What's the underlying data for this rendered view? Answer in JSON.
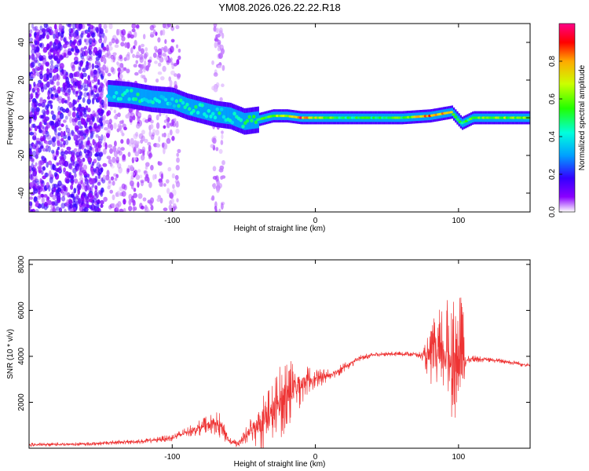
{
  "title": "YM08.2026.026.22.22.R18",
  "chart_data": [
    {
      "type": "heatmap",
      "xlabel": "Height of straight line (km)",
      "ylabel": "Frequency (Hz)",
      "xlim": [
        -200,
        150
      ],
      "ylim": [
        -50,
        50
      ],
      "xticks": [
        -100,
        0,
        100
      ],
      "yticks": [
        -40,
        -20,
        0,
        20,
        40
      ],
      "colorbar": {
        "label": "Normalized spectral amplitude",
        "range": [
          0,
          1
        ],
        "ticks": [
          "0.0",
          "0.2",
          "0.4",
          "0.6",
          "0.8"
        ]
      },
      "bands": [
        {
          "x_from": -200,
          "x_to": -148,
          "freq_spread": 50,
          "amplitude": 0.12
        },
        {
          "x_from": -148,
          "x_to": -95,
          "freq_spread": 50,
          "amplitude": 0.05
        },
        {
          "x_from": -72,
          "x_to": -64,
          "freq_spread": 50,
          "amplitude": 0.04
        }
      ],
      "ridge": [
        {
          "x": -145,
          "freq": 13,
          "amplitude": 0.35
        },
        {
          "x": -130,
          "freq": 12,
          "amplitude": 0.45
        },
        {
          "x": -115,
          "freq": 10,
          "amplitude": 0.4
        },
        {
          "x": -100,
          "freq": 9,
          "amplitude": 0.4
        },
        {
          "x": -90,
          "freq": 6,
          "amplitude": 0.45
        },
        {
          "x": -80,
          "freq": 4,
          "amplitude": 0.45
        },
        {
          "x": -70,
          "freq": 2,
          "amplitude": 0.45
        },
        {
          "x": -60,
          "freq": 1,
          "amplitude": 0.4
        },
        {
          "x": -50,
          "freq": -2,
          "amplitude": 0.45
        },
        {
          "x": -40,
          "freq": -1,
          "amplitude": 0.5
        },
        {
          "x": -30,
          "freq": 1,
          "amplitude": 0.55
        },
        {
          "x": -20,
          "freq": 1,
          "amplitude": 0.7
        },
        {
          "x": -10,
          "freq": 0,
          "amplitude": 0.85
        },
        {
          "x": 0,
          "freq": 0,
          "amplitude": 0.65
        },
        {
          "x": 20,
          "freq": 0,
          "amplitude": 0.5
        },
        {
          "x": 40,
          "freq": 0,
          "amplitude": 0.5
        },
        {
          "x": 60,
          "freq": 0,
          "amplitude": 0.55
        },
        {
          "x": 80,
          "freq": 1,
          "amplitude": 0.85
        },
        {
          "x": 95,
          "freq": 3,
          "amplitude": 0.7
        },
        {
          "x": 102,
          "freq": -3,
          "amplitude": 0.45
        },
        {
          "x": 110,
          "freq": 0,
          "amplitude": 0.55
        },
        {
          "x": 130,
          "freq": 0,
          "amplitude": 0.6
        },
        {
          "x": 150,
          "freq": 0,
          "amplitude": 0.6
        }
      ]
    },
    {
      "type": "line",
      "xlabel": "Height of straight line (km)",
      "ylabel": "SNR (10 * v/v)",
      "xlim": [
        -200,
        150
      ],
      "ylim": [
        0,
        8200
      ],
      "xticks": [
        -100,
        0,
        100
      ],
      "yticks": [
        2000,
        4000,
        6000,
        8000
      ],
      "series": [
        {
          "color": "#ee3333",
          "x": [
            -200,
            -180,
            -160,
            -140,
            -120,
            -100,
            -90,
            -80,
            -70,
            -65,
            -60,
            -55,
            -50,
            -45,
            -40,
            -35,
            -30,
            -25,
            -20,
            -15,
            -10,
            -5,
            0,
            10,
            20,
            30,
            40,
            50,
            60,
            70,
            75,
            80,
            85,
            90,
            95,
            100,
            103,
            105,
            110,
            120,
            130,
            140,
            150
          ],
          "y": [
            150,
            170,
            180,
            250,
            300,
            450,
            700,
            900,
            1100,
            900,
            300,
            200,
            400,
            800,
            1100,
            1300,
            1500,
            2000,
            2400,
            2600,
            2800,
            3000,
            3000,
            3200,
            3500,
            3900,
            4050,
            4100,
            4100,
            4100,
            4000,
            4000,
            4000,
            4100,
            4000,
            4000,
            4000,
            3800,
            3900,
            3850,
            3800,
            3700,
            3600
          ],
          "spread": [
            80,
            80,
            80,
            100,
            100,
            150,
            200,
            350,
            500,
            600,
            150,
            150,
            300,
            600,
            1200,
            1500,
            1500,
            1600,
            1800,
            1200,
            1000,
            600,
            400,
            300,
            200,
            150,
            100,
            100,
            100,
            100,
            200,
            1200,
            2000,
            2200,
            2800,
            2800,
            2500,
            200,
            150,
            100,
            100,
            100,
            100
          ]
        }
      ]
    }
  ]
}
